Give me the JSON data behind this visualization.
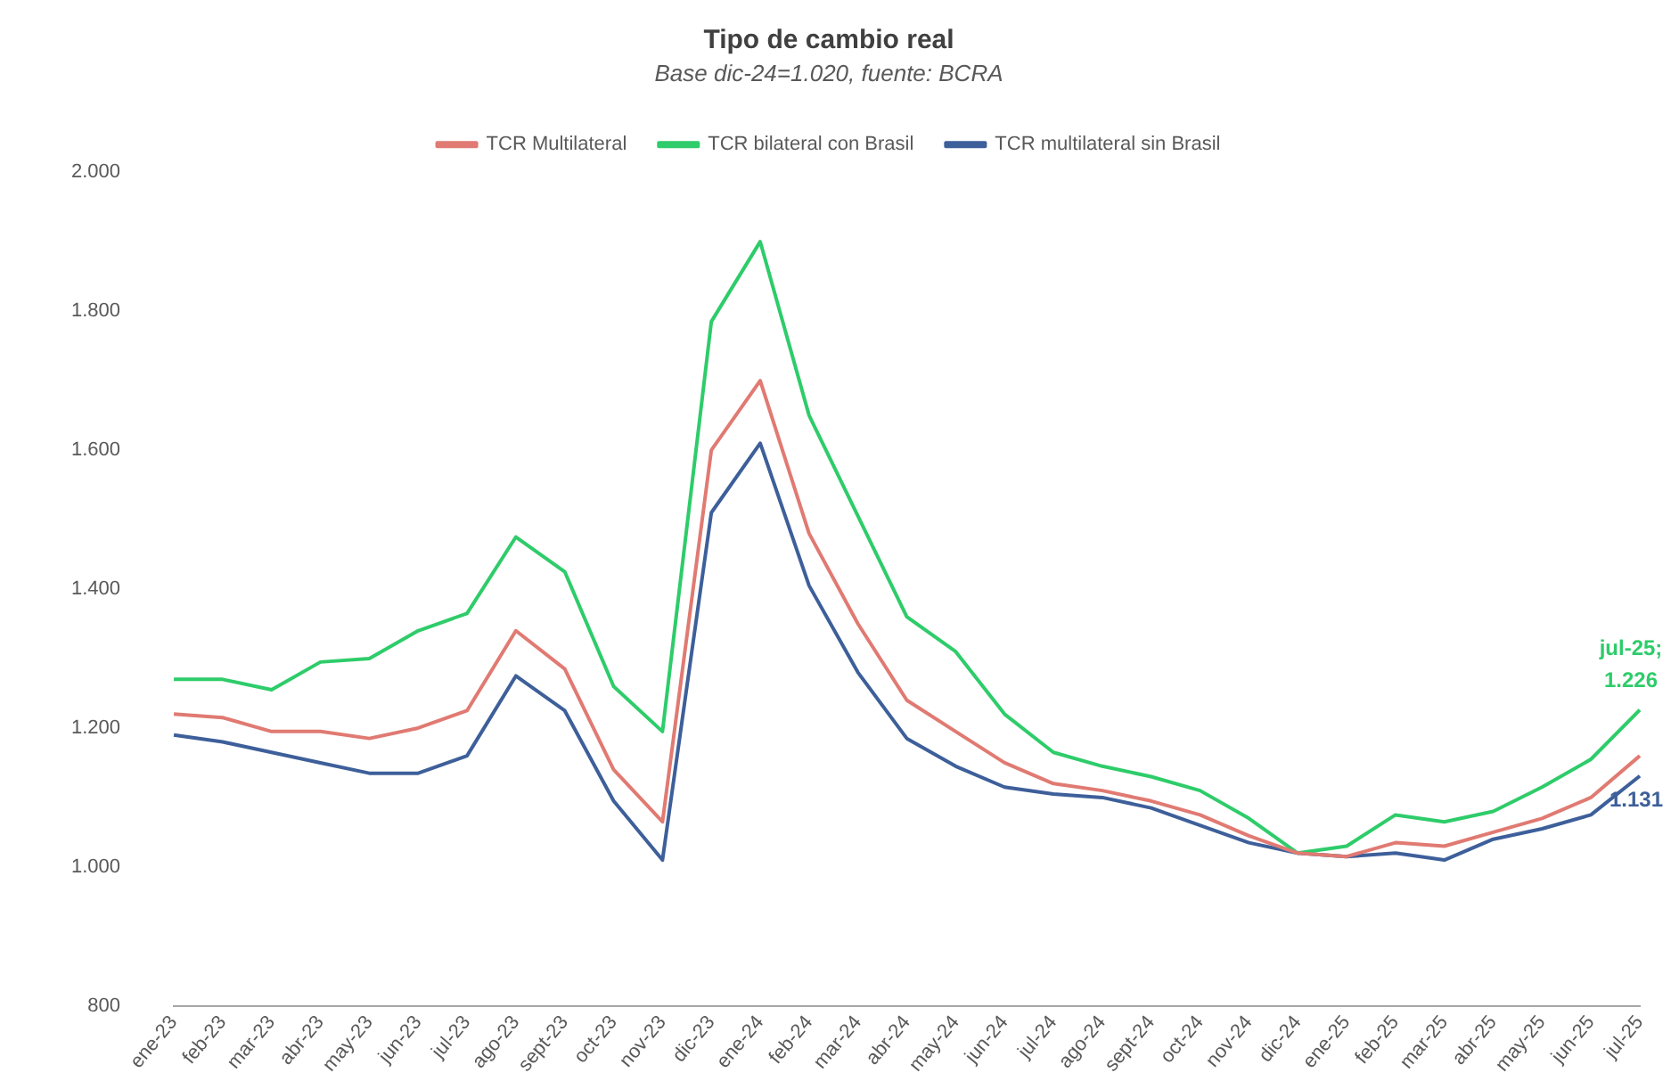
{
  "chart_data": {
    "type": "line",
    "title": "Tipo de cambio real",
    "subtitle": "Base dic-24=1.020, fuente: BCRA",
    "categories": [
      "ene-23",
      "feb-23",
      "mar-23",
      "abr-23",
      "may-23",
      "jun-23",
      "jul-23",
      "ago-23",
      "sept-23",
      "oct-23",
      "nov-23",
      "dic-23",
      "ene-24",
      "feb-24",
      "mar-24",
      "abr-24",
      "may-24",
      "jun-24",
      "jul-24",
      "ago-24",
      "sept-24",
      "oct-24",
      "nov-24",
      "dic-24",
      "ene-25",
      "feb-25",
      "mar-25",
      "abr-25",
      "may-25",
      "jun-25",
      "jul-25"
    ],
    "series": [
      {
        "name": "TCR Multilateral",
        "color": "#e07a72",
        "values": [
          1220,
          1215,
          1195,
          1195,
          1185,
          1200,
          1225,
          1340,
          1285,
          1140,
          1065,
          1600,
          1700,
          1480,
          1350,
          1240,
          1195,
          1150,
          1120,
          1110,
          1095,
          1075,
          1045,
          1020,
          1015,
          1035,
          1030,
          1050,
          1070,
          1100,
          1160
        ]
      },
      {
        "name": "TCR bilateral con Brasil",
        "color": "#2ecc6a",
        "values": [
          1270,
          1270,
          1255,
          1295,
          1300,
          1340,
          1365,
          1475,
          1425,
          1260,
          1195,
          1785,
          1900,
          1650,
          1505,
          1360,
          1310,
          1220,
          1165,
          1145,
          1130,
          1110,
          1070,
          1020,
          1030,
          1075,
          1065,
          1080,
          1115,
          1155,
          1226
        ],
        "value_labels": [
          null,
          null,
          null,
          null,
          null,
          null,
          null,
          null,
          null,
          null,
          null,
          null,
          null,
          null,
          null,
          null,
          null,
          null,
          null,
          null,
          null,
          null,
          null,
          null,
          null,
          null,
          null,
          null,
          null,
          null,
          "jul-25; 1.226"
        ]
      },
      {
        "name": "TCR multilateral sin Brasil",
        "color": "#3d5f9a",
        "values": [
          1190,
          1180,
          1165,
          1150,
          1135,
          1135,
          1160,
          1275,
          1225,
          1095,
          1010,
          1510,
          1610,
          1405,
          1280,
          1185,
          1145,
          1115,
          1105,
          1100,
          1085,
          1060,
          1035,
          1020,
          1015,
          1020,
          1010,
          1040,
          1055,
          1075,
          1131
        ],
        "value_labels": [
          null,
          null,
          null,
          null,
          null,
          null,
          null,
          null,
          null,
          null,
          null,
          null,
          null,
          null,
          null,
          null,
          null,
          null,
          null,
          null,
          null,
          null,
          null,
          null,
          null,
          null,
          null,
          null,
          null,
          null,
          "1.131"
        ]
      }
    ],
    "ylim": [
      800,
      2000
    ],
    "yticks": [
      {
        "value": 800,
        "label": "800"
      },
      {
        "value": 1000,
        "label": "1.000"
      },
      {
        "value": 1200,
        "label": "1.200"
      },
      {
        "value": 1400,
        "label": "1.400"
      },
      {
        "value": 1600,
        "label": "1.600"
      },
      {
        "value": 1800,
        "label": "1.800"
      },
      {
        "value": 2000,
        "label": "2.000"
      }
    ],
    "grid": false,
    "legend": "top",
    "marker": "none",
    "line_style": "solid"
  }
}
